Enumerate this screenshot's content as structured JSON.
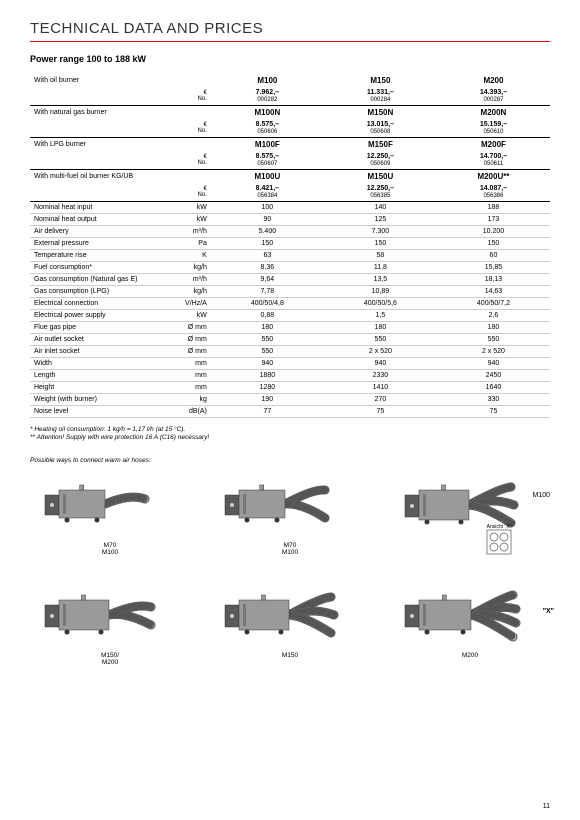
{
  "page_title": "TECHNICAL DATA AND PRICES",
  "subtitle": "Power range 100 to 188 kW",
  "currency_symbol": "€",
  "no_label": "No.",
  "burner_groups": [
    {
      "label": "With oil burner",
      "models": [
        "M100",
        "M150",
        "M200"
      ],
      "prices": [
        "7.962,–",
        "11.331,–",
        "14.393,–"
      ],
      "nos": [
        "000282",
        "000284",
        "000287"
      ]
    },
    {
      "label": "With natural gas burner",
      "models": [
        "M100N",
        "M150N",
        "M200N"
      ],
      "prices": [
        "8.575,–",
        "13.015,–",
        "15.159,–"
      ],
      "nos": [
        "050606",
        "050608",
        "050610"
      ]
    },
    {
      "label": "With LPG burner",
      "models": [
        "M100F",
        "M150F",
        "M200F"
      ],
      "prices": [
        "8.575,–",
        "12.250,–",
        "14.700,–"
      ],
      "nos": [
        "050607",
        "050609",
        "050611"
      ]
    },
    {
      "label": "With multi-fuel oil burner KG/UB",
      "models": [
        "M100U",
        "M150U",
        "M200U**"
      ],
      "prices": [
        "8.421,–",
        "12.250,–",
        "14.087,–"
      ],
      "nos": [
        "056384",
        "056385",
        "056386"
      ]
    }
  ],
  "specs": [
    {
      "label": "Nominal heat input",
      "unit": "kW",
      "vals": [
        "100",
        "140",
        "188"
      ]
    },
    {
      "label": "Nominal heat output",
      "unit": "kW",
      "vals": [
        "90",
        "125",
        "173"
      ]
    },
    {
      "label": "Air delivery",
      "unit": "m³/h",
      "vals": [
        "5.400",
        "7.300",
        "10.200"
      ]
    },
    {
      "label": "External pressure",
      "unit": "Pa",
      "vals": [
        "150",
        "150",
        "150"
      ]
    },
    {
      "label": "Temperature rise",
      "unit": "K",
      "vals": [
        "63",
        "58",
        "60"
      ]
    },
    {
      "label": "Fuel consumption*",
      "unit": "kg/h",
      "vals": [
        "8,36",
        "11,8",
        "15,85"
      ]
    },
    {
      "label": "Gas consumption (Natural gas E)",
      "unit": "m³/h",
      "vals": [
        "9,64",
        "13,5",
        "18,13"
      ]
    },
    {
      "label": "Gas consumption (LPG)",
      "unit": "kg/h",
      "vals": [
        "7,78",
        "10,89",
        "14,63"
      ]
    },
    {
      "label": "Electrical connection",
      "unit": "V/Hz/A",
      "vals": [
        "400/50/4,8",
        "400/50/5,6",
        "400/50/7,2"
      ]
    },
    {
      "label": "Electrical power supply",
      "unit": "kW",
      "vals": [
        "0,88",
        "1,5",
        "2,6"
      ]
    },
    {
      "label": "Flue gas pipe",
      "unit": "Ø mm",
      "vals": [
        "180",
        "180",
        "180"
      ]
    },
    {
      "label": "Air outlet socket",
      "unit": "Ø mm",
      "vals": [
        "550",
        "550",
        "550"
      ]
    },
    {
      "label": "Air inlet socket",
      "unit": "Ø mm",
      "vals": [
        "550",
        "2 x 520",
        "2 x 520"
      ]
    },
    {
      "label": "Width",
      "unit": "mm",
      "vals": [
        "940",
        "940",
        "940"
      ]
    },
    {
      "label": "Length",
      "unit": "mm",
      "vals": [
        "1880",
        "2330",
        "2450"
      ]
    },
    {
      "label": "Height",
      "unit": "mm",
      "vals": [
        "1280",
        "1410",
        "1640"
      ]
    },
    {
      "label": "Weight (with burner)",
      "unit": "kg",
      "vals": [
        "190",
        "270",
        "330"
      ]
    },
    {
      "label": "Noise level",
      "unit": "dB(A)",
      "vals": [
        "77",
        "75",
        "75"
      ]
    }
  ],
  "footnote1": "*  Heating oil consumption: 1 kg/h = 1,17 l/h (at 15 °C).",
  "footnote2": "** Attention! Supply with wire protection 16 A (C16) necessary!",
  "diagram_title": "Possible ways to connect warm air hoses:",
  "diagram_captions": [
    "M70\nM100",
    "M70\nM100",
    "M100",
    "M150/\nM200",
    "M150",
    "M200"
  ],
  "x_label": "\"X\"",
  "ansicht_label": "Ansicht \"X\"",
  "page_number": "11",
  "colors": {
    "body_gray": "#9a9a9a",
    "body_dark": "#5a5a5a",
    "hose": "#b8b8b8",
    "hose_stroke": "#555"
  }
}
